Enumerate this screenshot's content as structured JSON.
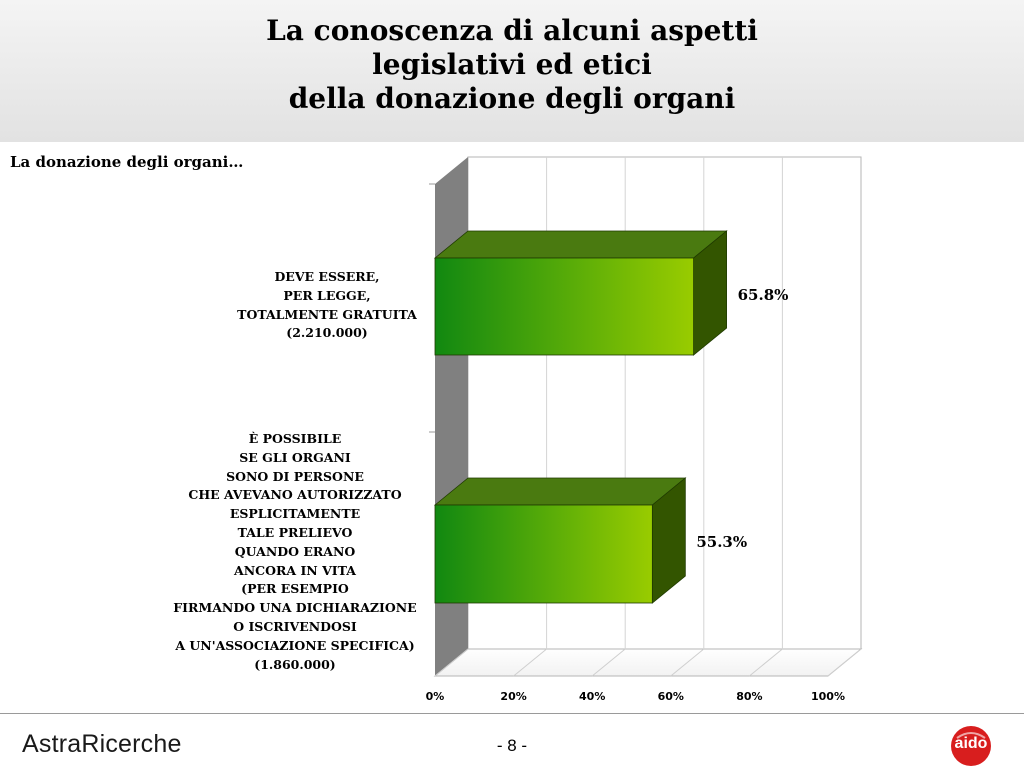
{
  "header": {
    "title_lines": [
      "La conoscenza di alcuni aspetti",
      "legislativi ed etici",
      "della donazione degli organi"
    ]
  },
  "subtitle": "La donazione degli organi…",
  "chart_data": {
    "type": "bar",
    "orientation": "horizontal",
    "style": "3d",
    "categories": [
      {
        "label_lines": [
          "DEVE ESSERE,",
          "PER LEGGE,",
          "TOTALMENTE GRATUITA",
          "(2.210.000)"
        ],
        "value": 65.8,
        "value_label": "65.8%"
      },
      {
        "label_lines": [
          "È POSSIBILE",
          "SE GLI ORGANI",
          "SONO DI PERSONE",
          "CHE AVEVANO AUTORIZZATO",
          "ESPLICITAMENTE",
          "TALE PRELIEVO",
          "QUANDO ERANO",
          "ANCORA IN VITA",
          "(PER ESEMPIO",
          "FIRMANDO UNA DICHIARAZIONE",
          "O ISCRIVENDOSI",
          "A UN'ASSOCIAZIONE SPECIFICA)",
          "(1.860.000)"
        ],
        "value": 55.3,
        "value_label": "55.3%"
      }
    ],
    "xlim": [
      0,
      100
    ],
    "ticks": [
      "0%",
      "20%",
      "40%",
      "60%",
      "80%",
      "100%"
    ],
    "grid": true,
    "colors": {
      "bar_light": "#99cc00",
      "bar_dark": "#118811",
      "bar_side": "#335500",
      "bar_top": "#4a7a10",
      "wall": "#808080"
    }
  },
  "footer": {
    "brand": "AstraRicerche",
    "page_number": "- 8 -",
    "logo_text": "aido"
  }
}
